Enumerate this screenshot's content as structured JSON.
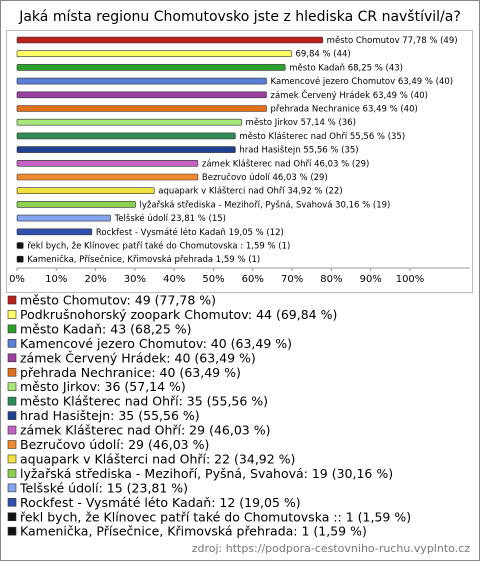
{
  "chart_data": {
    "type": "bar",
    "orientation": "horizontal",
    "title": "Jaká místa regionu Chomutovsko jste z hlediska CR navštívil/a?",
    "values": [
      77.78,
      69.84,
      68.25,
      63.49,
      63.49,
      63.49,
      57.14,
      55.56,
      55.56,
      46.03,
      46.03,
      34.92,
      30.16,
      23.81,
      19.05,
      1.59,
      1.59
    ],
    "value_labels": [
      "město Chomutov 77,78 % (49)",
      "69,84 % (44)",
      "město Kadaň 68,25 % (43)",
      "Kamencové jezero Chomutov 63,49 % (40)",
      "zámek Červený Hrádek 63,49 % (40)",
      "přehrada Nechranice 63,49 % (40)",
      "město Jirkov 57,14 % (36)",
      "město Klášterec nad Ohří 55,56 % (35)",
      "hrad Hasištejn 55,56 % (35)",
      "zámek Klášterec nad Ohří 46,03 % (29)",
      "Bezručovo údolí 46,03 % (29)",
      "aquapark v Klášterci nad Ohří 34,92 % (22)",
      "lyžařská střediska - Mezihoří, Pyšná, Svahová 30,16 % (19)",
      "Telšské údolí 23,81 % (15)",
      "Rockfest - Vysmáté léto Kadaň 19,05 % (12)",
      "řekl bych, že Klínovec patří také do Chomutovska : 1,59 % (1)",
      "Kamenička, Přísečnice, Křimovská přehrada 1,59 % (1)"
    ],
    "legend_labels": [
      "město Chomutov: 49 (77,78 %)",
      "Podkrušnohorský zoopark Chomutov: 44 (69,84 %)",
      "město Kadaň: 43 (68,25 %)",
      "Kamencové jezero Chomutov: 40 (63,49 %)",
      "zámek Červený Hrádek: 40 (63,49 %)",
      "přehrada Nechranice: 40 (63,49 %)",
      "město Jirkov: 36 (57,14 %)",
      "město Klášterec nad Ohří: 35 (55,56 %)",
      "hrad Hasištejn: 35 (55,56 %)",
      "zámek Klášterec nad Ohří: 29 (46,03 %)",
      "Bezručovo údolí: 29 (46,03 %)",
      "aquapark v Klášterci nad Ohří: 22 (34,92 %)",
      "lyžařská střediska - Mezihoří, Pyšná, Svahová: 19 (30,16 %)",
      "Telšské údolí: 15 (23,81 %)",
      "Rockfest - Vysmáté léto Kadaň: 12 (19,05 %)",
      "řekl bych, že Klínovec patří také do Chomutovska :: 1 (1,59 %)",
      "Kamenička, Přísečnice, Křimovská přehrada: 1 (1,59 %)"
    ],
    "colors": [
      "#b8201c",
      "#ffff66",
      "#2ca02c",
      "#5a7fd8",
      "#9b3fa0",
      "#e0701c",
      "#a6e87a",
      "#2e8b57",
      "#1f3f8f",
      "#c462c4",
      "#f08a30",
      "#f0e040",
      "#8ed050",
      "#84a4f0",
      "#3050b0",
      "#111111",
      "#111111"
    ],
    "xlim": [
      0,
      100
    ],
    "xticks": [
      {
        "value": 0,
        "label": "0%"
      },
      {
        "value": 10,
        "label": "10%"
      },
      {
        "value": 20,
        "label": "20%"
      },
      {
        "value": 30,
        "label": "30%"
      },
      {
        "value": 40,
        "label": "40%"
      },
      {
        "value": 50,
        "label": "50%"
      },
      {
        "value": 60,
        "label": "60%"
      },
      {
        "value": 70,
        "label": "70%"
      },
      {
        "value": 80,
        "label": "80%"
      },
      {
        "value": 90,
        "label": "90%"
      },
      {
        "value": 100,
        "label": "100%"
      }
    ],
    "source": "zdroj: https://podpora-cestovniho-ruchu.vyplnto.cz"
  }
}
